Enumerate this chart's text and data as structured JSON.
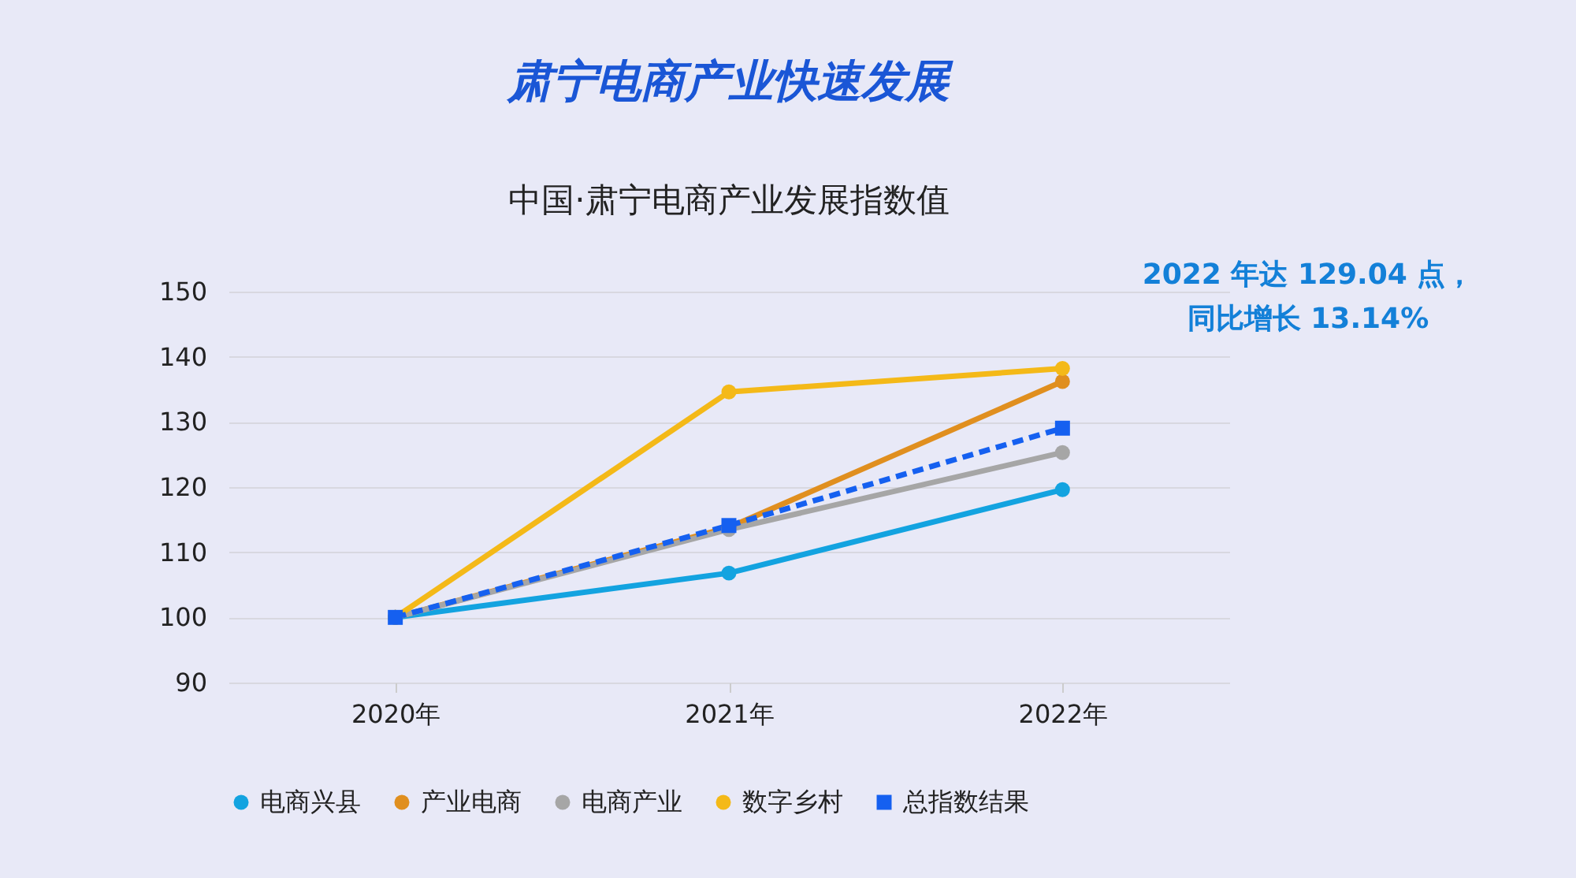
{
  "chart_data": {
    "type": "line",
    "title": "肃宁电商产业快速发展",
    "subtitle": "中国·肃宁电商产业发展指数值",
    "categories": [
      "2020年",
      "2021年",
      "2022年"
    ],
    "series": [
      {
        "name": "电商兴县",
        "color": "#13a3e0",
        "values": [
          100,
          106.8,
          119.6
        ]
      },
      {
        "name": "产业电商",
        "color": "#e08f1f",
        "values": [
          100,
          113.8,
          136.2
        ]
      },
      {
        "name": "电商产业",
        "color": "#a6a6a6",
        "values": [
          100,
          113.5,
          125.3
        ]
      },
      {
        "name": "数字乡村",
        "color": "#f4b918",
        "values": [
          100,
          134.6,
          138.2
        ]
      },
      {
        "name": "总指数结果",
        "color": "#1560f0",
        "values": [
          100,
          114.1,
          129.04
        ],
        "line_style": "dashed",
        "marker": "square"
      }
    ],
    "ylim": [
      90,
      150
    ],
    "yticks": [
      90,
      100,
      110,
      120,
      130,
      140,
      150
    ],
    "grid": "y",
    "legend": "bottom",
    "marker": "circle",
    "line_style": "solid",
    "annotations": [
      "2022 年达 129.04 点，",
      "同比增长 13.14%"
    ]
  }
}
